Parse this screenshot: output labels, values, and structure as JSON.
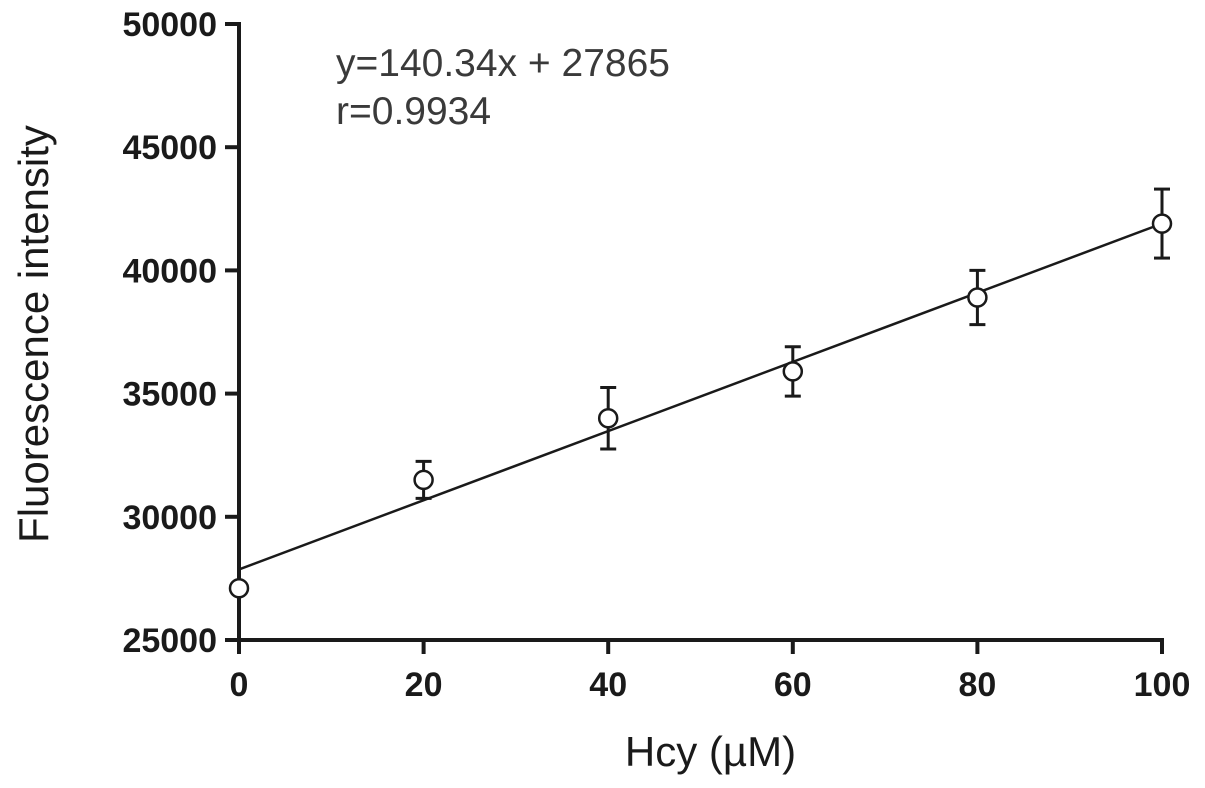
{
  "chart_data": {
    "type": "scatter",
    "title": "",
    "xlabel": "Hcy (µM)",
    "ylabel": "Fluorescence intensity",
    "xlim": [
      0,
      100
    ],
    "ylim": [
      25000,
      50000
    ],
    "x_ticks": [
      "0",
      "20",
      "40",
      "60",
      "80",
      "100"
    ],
    "y_ticks": [
      "25000",
      "30000",
      "35000",
      "40000",
      "45000",
      "50000"
    ],
    "grid": false,
    "legend": "none",
    "series": [
      {
        "marker": "open-circle",
        "error_bars": true,
        "points": [
          {
            "x": 0,
            "y": 27100,
            "err": 0
          },
          {
            "x": 20,
            "y": 31500,
            "err": 750
          },
          {
            "x": 40,
            "y": 34000,
            "err": 1250
          },
          {
            "x": 60,
            "y": 35900,
            "err": 1000
          },
          {
            "x": 80,
            "y": 38900,
            "err": 1100
          },
          {
            "x": 100,
            "y": 41900,
            "err": 1400
          }
        ]
      }
    ],
    "fit_line": {
      "slope": 140.34,
      "intercept": 27865,
      "x_range": [
        0,
        100
      ]
    },
    "annotations": [
      "y=140.34x + 27865",
      "r=0.9934"
    ],
    "colors": {
      "axis": "#1a1a1a",
      "marker_stroke": "#1a1a1a",
      "marker_fill": "#ffffff",
      "fit_line": "#1a1a1a",
      "annotation_text": "#3a3a3a"
    }
  }
}
